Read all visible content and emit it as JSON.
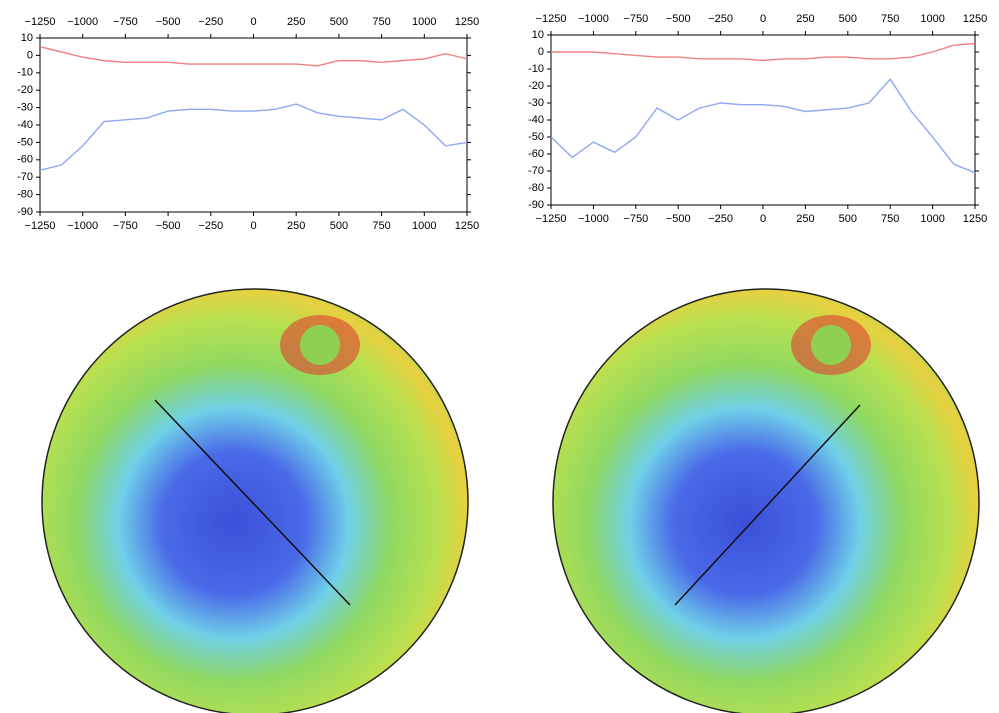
{
  "chart_data": [
    {
      "type": "line",
      "x": [
        -1250,
        -1125,
        -1000,
        -875,
        -750,
        -625,
        -500,
        -375,
        -250,
        -125,
        0,
        125,
        250,
        375,
        500,
        625,
        750,
        875,
        1000,
        1125,
        1250
      ],
      "series": [
        {
          "color": "#f08080",
          "values": [
            5,
            2,
            -1,
            -3,
            -4,
            -4,
            -4,
            -5,
            -5,
            -5,
            -5,
            -5,
            -5,
            -6,
            -3,
            -3,
            -4,
            -3,
            -2,
            1,
            -2
          ]
        },
        {
          "color": "#8fa8f0",
          "values": [
            -66,
            -63,
            -52,
            -38,
            -37,
            -36,
            -32,
            -31,
            -31,
            -32,
            -32,
            -31,
            -28,
            -33,
            -35,
            -36,
            -37,
            -31,
            -40,
            -52,
            -50
          ]
        }
      ],
      "xlim": [
        -1250,
        1250
      ],
      "xticks": [
        {
          "value": -1250,
          "label": "−1250"
        },
        {
          "value": -1000,
          "label": "−1000"
        },
        {
          "value": -750,
          "label": "−750"
        },
        {
          "value": -500,
          "label": "−500"
        },
        {
          "value": -250,
          "label": "−250"
        },
        0,
        250,
        500,
        750,
        1000,
        1250
      ],
      "ylim": [
        -90,
        10
      ],
      "yticks": [
        -90,
        -80,
        -70,
        -60,
        -50,
        -40,
        -30,
        -20,
        -10,
        0,
        10
      ]
    },
    {
      "type": "line",
      "x": [
        -1250,
        -1125,
        -1000,
        -875,
        -750,
        -625,
        -500,
        -375,
        -250,
        -125,
        0,
        125,
        250,
        375,
        500,
        625,
        750,
        875,
        1000,
        1125,
        1250
      ],
      "series": [
        {
          "color": "#f08080",
          "values": [
            0,
            0,
            0,
            -1,
            -2,
            -3,
            -3,
            -4,
            -4,
            -4,
            -5,
            -4,
            -4,
            -3,
            -3,
            -4,
            -4,
            -3,
            0,
            4,
            5
          ]
        },
        {
          "color": "#8fa8f0",
          "values": [
            -50,
            -62,
            -53,
            -59,
            -50,
            -33,
            -40,
            -33,
            -30,
            -31,
            -31,
            -32,
            -35,
            -34,
            -33,
            -30,
            -16,
            -35,
            -50,
            -66,
            -71
          ]
        }
      ],
      "xlim": [
        -1250,
        1250
      ],
      "xticks": [
        {
          "value": -1250,
          "label": "−1250"
        },
        {
          "value": -1000,
          "label": "−1000"
        },
        {
          "value": -750,
          "label": "−750"
        },
        {
          "value": -500,
          "label": "−500"
        },
        {
          "value": -250,
          "label": "−250"
        },
        0,
        250,
        500,
        750,
        1000,
        1250
      ],
      "ylim": [
        -90,
        10
      ],
      "yticks": [
        -90,
        -80,
        -70,
        -60,
        -50,
        -40,
        -30,
        -20,
        -10,
        0,
        10
      ]
    }
  ]
}
